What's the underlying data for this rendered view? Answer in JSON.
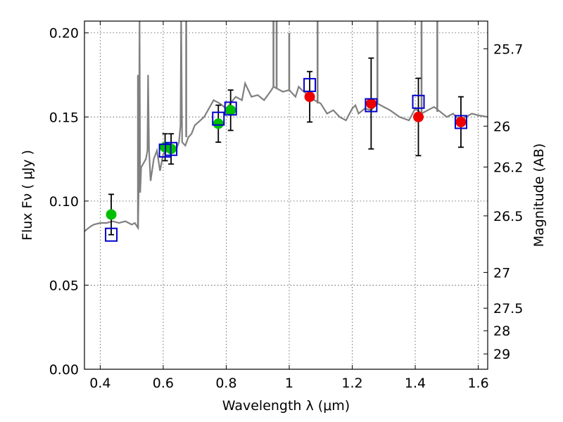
{
  "chart_data": {
    "type": "scatter",
    "title": "",
    "xlabel": "Wavelength  λ (μm)",
    "ylabel": "Flux  Fν  ( μJy )",
    "ylabel_right": "Magnitude (AB)",
    "xlim": [
      0.35,
      1.63
    ],
    "ylim": [
      0.0,
      0.207
    ],
    "xticks": [
      0.4,
      0.6,
      0.8,
      1.0,
      1.2,
      1.4,
      1.6
    ],
    "xtick_labels": [
      "0.4",
      "0.6",
      "0.8",
      "1",
      "1.2",
      "1.4",
      "1.6"
    ],
    "yticks": [
      0.0,
      0.05,
      0.1,
      0.15,
      0.2
    ],
    "ytick_labels": [
      "0.00",
      "0.05",
      "0.10",
      "0.15",
      "0.20"
    ],
    "right_ticks": [
      {
        "label": "25.7",
        "mag": 25.7
      },
      {
        "label": "26",
        "mag": 26.0
      },
      {
        "label": "26.2",
        "mag": 26.2
      },
      {
        "label": "26.5",
        "mag": 26.5
      },
      {
        "label": "27",
        "mag": 27.0
      },
      {
        "label": "27.5",
        "mag": 27.5
      },
      {
        "label": "28",
        "mag": 28.0
      },
      {
        "label": "29",
        "mag": 29.0
      }
    ],
    "grid": true,
    "colors": {
      "model_spectrum": "#808080",
      "optical_points": "#00bf00",
      "nir_points": "#ee0000",
      "model_squares": "#0000cc",
      "errorbars": "#000000"
    },
    "series": [
      {
        "marker": "green-circle",
        "x": [
          0.435,
          0.606,
          0.625,
          0.775,
          0.814
        ],
        "y": [
          0.092,
          0.132,
          0.131,
          0.146,
          0.154
        ],
        "yerr": [
          0.012,
          0.008,
          0.009,
          0.011,
          0.012
        ]
      },
      {
        "marker": "red-circle",
        "x": [
          1.065,
          1.26,
          1.41,
          1.545
        ],
        "y": [
          0.162,
          0.158,
          0.15,
          0.147
        ],
        "yerr": [
          0.015,
          0.027,
          0.023,
          0.015
        ]
      },
      {
        "marker": "blue-square",
        "x": [
          0.435,
          0.606,
          0.625,
          0.775,
          0.814,
          1.065,
          1.26,
          1.41,
          1.545
        ],
        "y": [
          0.08,
          0.13,
          0.131,
          0.149,
          0.155,
          0.169,
          0.157,
          0.159,
          0.147
        ]
      },
      {
        "marker": "gray-line",
        "x": [
          0.35,
          0.37,
          0.38,
          0.4,
          0.42,
          0.44,
          0.46,
          0.48,
          0.5,
          0.51,
          0.52,
          0.523,
          0.525,
          0.527,
          0.53,
          0.545,
          0.55,
          0.552,
          0.555,
          0.56,
          0.57,
          0.58,
          0.59,
          0.6,
          0.62,
          0.64,
          0.65,
          0.655,
          0.657,
          0.66,
          0.67,
          0.68,
          0.69,
          0.7,
          0.73,
          0.76,
          0.78,
          0.8,
          0.83,
          0.85,
          0.86,
          0.88,
          0.9,
          0.92,
          0.94,
          0.95,
          0.96,
          0.98,
          1.0,
          1.02,
          1.03,
          1.04,
          1.06,
          1.08,
          1.1,
          1.12,
          1.14,
          1.16,
          1.18,
          1.2,
          1.21,
          1.22,
          1.24,
          1.26,
          1.28,
          1.3,
          1.32,
          1.35,
          1.38,
          1.4,
          1.42,
          1.44,
          1.46,
          1.48,
          1.5,
          1.52,
          1.54,
          1.56,
          1.58,
          1.6,
          1.63
        ],
        "y": [
          0.082,
          0.085,
          0.086,
          0.087,
          0.087,
          0.088,
          0.087,
          0.088,
          0.086,
          0.087,
          0.084,
          0.115,
          0.21,
          0.105,
          0.12,
          0.125,
          0.13,
          0.175,
          0.13,
          0.112,
          0.125,
          0.13,
          0.118,
          0.128,
          0.132,
          0.13,
          0.135,
          0.145,
          0.21,
          0.135,
          0.133,
          0.138,
          0.14,
          0.145,
          0.15,
          0.16,
          0.158,
          0.155,
          0.162,
          0.16,
          0.17,
          0.162,
          0.163,
          0.16,
          0.165,
          0.168,
          0.167,
          0.165,
          0.166,
          0.162,
          0.168,
          0.166,
          0.163,
          0.16,
          0.158,
          0.152,
          0.154,
          0.15,
          0.148,
          0.155,
          0.157,
          0.152,
          0.155,
          0.154,
          0.158,
          0.156,
          0.154,
          0.15,
          0.148,
          0.155,
          0.152,
          0.154,
          0.156,
          0.153,
          0.15,
          0.152,
          0.148,
          0.15,
          0.152,
          0.151,
          0.15
        ]
      }
    ],
    "emission_lines": [
      {
        "x": 0.656,
        "peak": 0.21
      },
      {
        "x": 0.673,
        "peak": 0.21
      },
      {
        "x": 0.95,
        "peak": 0.21
      },
      {
        "x": 0.96,
        "peak": 0.21
      },
      {
        "x": 1.0,
        "peak": 0.2
      },
      {
        "x": 1.09,
        "peak": 0.21
      },
      {
        "x": 1.28,
        "peak": 0.21
      },
      {
        "x": 1.42,
        "peak": 0.21
      },
      {
        "x": 1.47,
        "peak": 0.21
      },
      {
        "x": 0.52,
        "peak": 0.175
      }
    ]
  }
}
